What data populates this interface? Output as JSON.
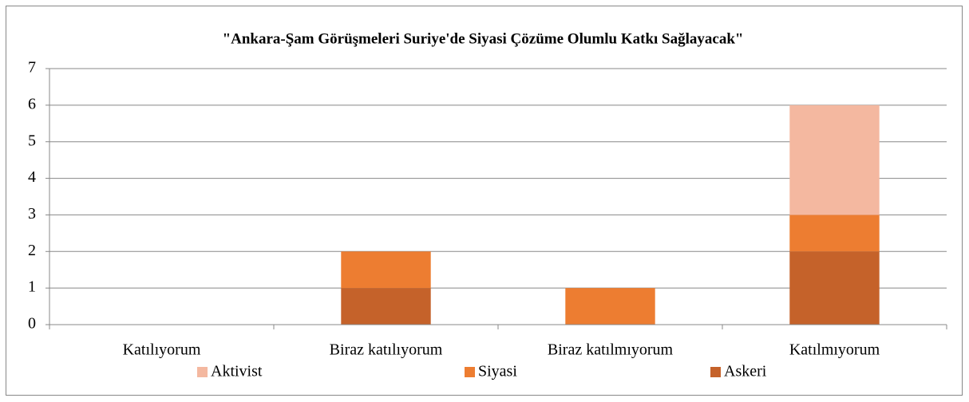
{
  "chart_data": {
    "type": "stacked_bar",
    "title": "\"Ankara-Şam Görüşmeleri Suriye'de Siyasi Çözüme Olumlu Katkı Sağlayacak\"",
    "categories": [
      "Katılıyorum",
      "Biraz katılıyorum",
      "Biraz katılmıyorum",
      "Katılmıyorum"
    ],
    "series": [
      {
        "name": "Askeri",
        "color": "#c5622a",
        "values": [
          0,
          1,
          0,
          2
        ]
      },
      {
        "name": "Siyasi",
        "color": "#ed7d31",
        "values": [
          0,
          1,
          1,
          1
        ]
      },
      {
        "name": "Aktivist",
        "color": "#f4b8a0",
        "values": [
          0,
          0,
          0,
          3
        ]
      }
    ],
    "ylim": [
      0,
      7
    ],
    "yticks": [
      0,
      1,
      2,
      3,
      4,
      5,
      6,
      7
    ],
    "grid": true,
    "legend": "bottom"
  }
}
